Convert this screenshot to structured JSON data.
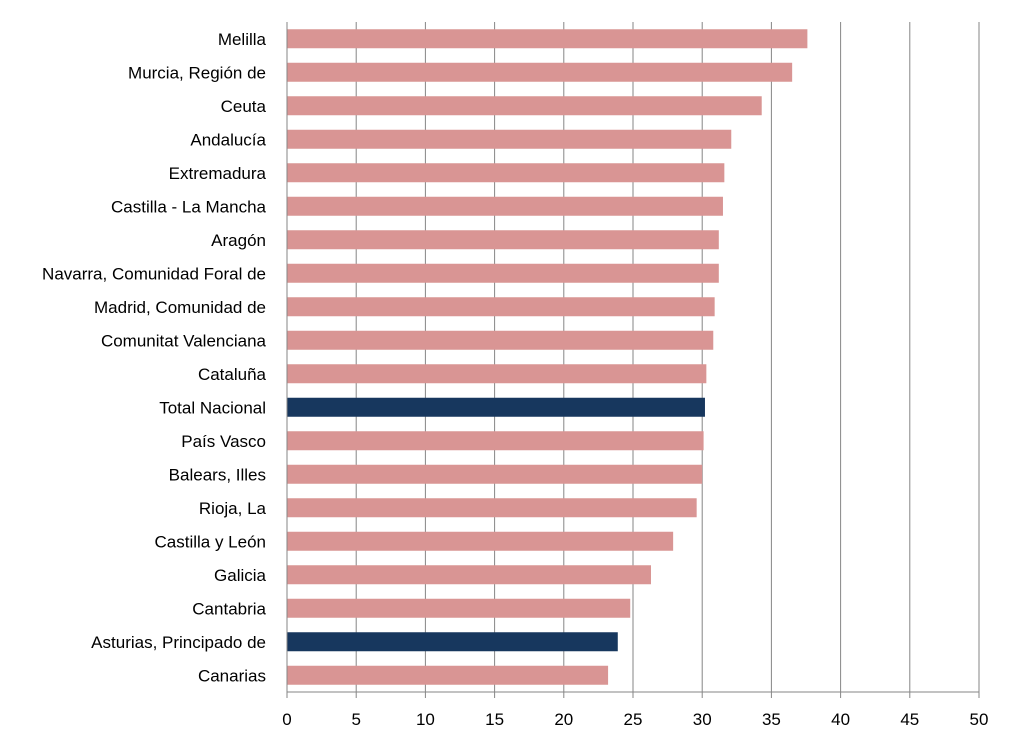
{
  "chart_data": {
    "type": "bar",
    "orientation": "horizontal",
    "categories": [
      "Melilla",
      "Murcia, Región de",
      "Ceuta",
      "Andalucía",
      "Extremadura",
      "Castilla - La Mancha",
      "Aragón",
      "Navarra, Comunidad Foral de",
      "Madrid, Comunidad de",
      "Comunitat Valenciana",
      "Cataluña",
      "Total Nacional",
      "País Vasco",
      "Balears, Illes",
      "Rioja, La",
      "Castilla y León",
      "Galicia",
      "Cantabria",
      "Asturias, Principado de",
      "Canarias"
    ],
    "values": [
      37.6,
      36.5,
      34.3,
      32.1,
      31.6,
      31.5,
      31.2,
      31.2,
      30.9,
      30.8,
      30.3,
      30.2,
      30.1,
      30.0,
      29.6,
      27.9,
      26.3,
      24.8,
      23.9,
      23.2
    ],
    "highlighted": [
      "Total Nacional",
      "Asturias, Principado de"
    ],
    "colors": {
      "default": "#d99594",
      "highlight": "#17375e",
      "grid": "#868686"
    },
    "xlim": [
      0,
      50
    ],
    "xticks": [
      "0",
      "5",
      "10",
      "15",
      "20",
      "25",
      "30",
      "35",
      "40",
      "45",
      "50"
    ],
    "grid": "vertical",
    "title": "",
    "xlabel": "",
    "ylabel": ""
  }
}
